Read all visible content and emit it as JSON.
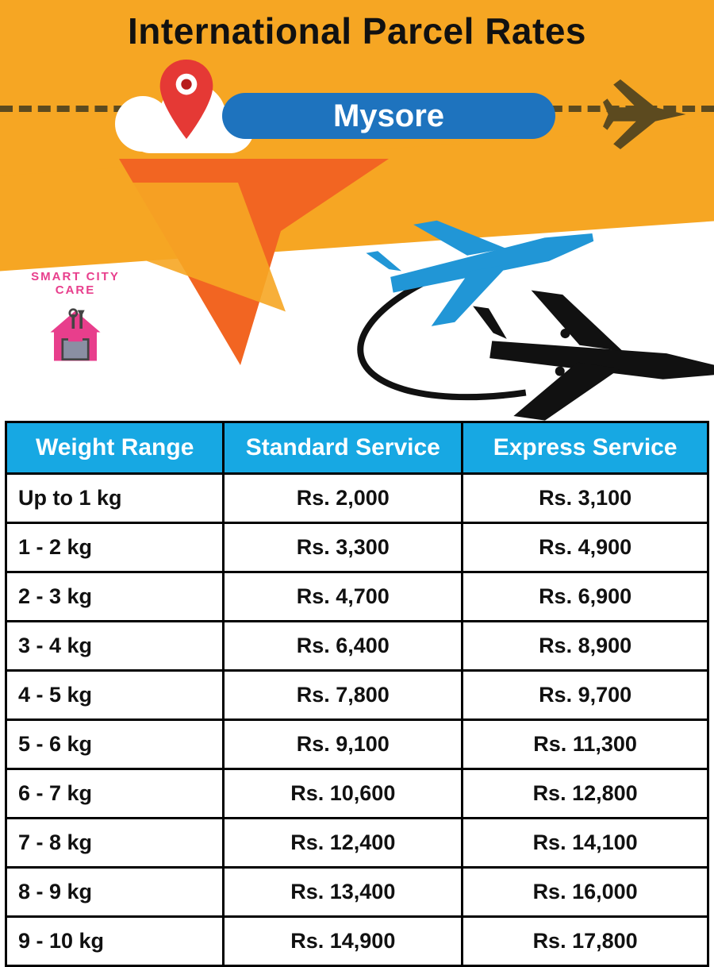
{
  "header": {
    "title": "International Parcel Rates",
    "city": "Mysore",
    "logo_text": "SMART CITY CARE",
    "colors": {
      "band": "#f6a623",
      "flag": "#f26522",
      "pill": "#1e73be",
      "table_header": "#17a8e3",
      "pin": "#e53935",
      "plane_dark": "#5c4a1f",
      "plane_blue": "#2196d6",
      "plane_black": "#111111"
    }
  },
  "table": {
    "columns": [
      "Weight Range",
      "Standard Service",
      "Express Service"
    ],
    "rows": [
      {
        "weight": "Up to 1 kg",
        "standard": "Rs. 2,000",
        "express": "Rs. 3,100"
      },
      {
        "weight": "1 - 2 kg",
        "standard": "Rs. 3,300",
        "express": "Rs. 4,900"
      },
      {
        "weight": "2 - 3 kg",
        "standard": "Rs. 4,700",
        "express": "Rs. 6,900"
      },
      {
        "weight": "3 - 4 kg",
        "standard": "Rs. 6,400",
        "express": "Rs. 8,900"
      },
      {
        "weight": "4 - 5 kg",
        "standard": "Rs. 7,800",
        "express": "Rs. 9,700"
      },
      {
        "weight": "5 - 6 kg",
        "standard": "Rs. 9,100",
        "express": "Rs. 11,300"
      },
      {
        "weight": "6 - 7 kg",
        "standard": "Rs. 10,600",
        "express": "Rs. 12,800"
      },
      {
        "weight": "7 - 8 kg",
        "standard": "Rs. 12,400",
        "express": "Rs. 14,100"
      },
      {
        "weight": "8 - 9 kg",
        "standard": "Rs. 13,400",
        "express": "Rs. 16,000"
      },
      {
        "weight": "9 - 10 kg",
        "standard": "Rs. 14,900",
        "express": "Rs. 17,800"
      }
    ]
  }
}
